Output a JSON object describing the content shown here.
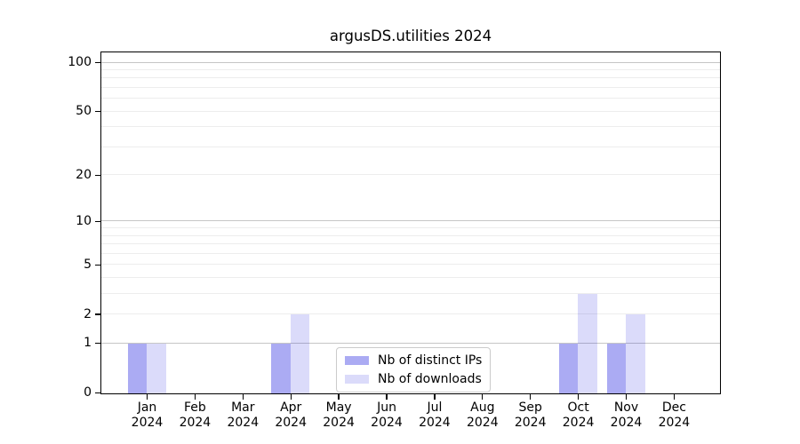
{
  "chart_data": {
    "type": "bar",
    "title": "argusDS.utilities 2024",
    "categories": [
      "Jan",
      "Feb",
      "Mar",
      "Apr",
      "May",
      "Jun",
      "Jul",
      "Aug",
      "Sep",
      "Oct",
      "Nov",
      "Dec"
    ],
    "category_year": "2024",
    "series": [
      {
        "name": "Nb of distinct IPs",
        "color": "#0000dc",
        "alpha": 0.33,
        "values": [
          1,
          0,
          0,
          1,
          0,
          0,
          0,
          0,
          0,
          1,
          1,
          0
        ]
      },
      {
        "name": "Nb of downloads",
        "color": "#0000dc",
        "alpha": 0.14,
        "values": [
          1,
          0,
          0,
          2,
          0,
          0,
          0,
          0,
          0,
          3,
          2,
          0
        ]
      }
    ],
    "yscale": "log1p",
    "ylim": [
      0,
      115
    ],
    "y_ticks": [
      0,
      1,
      2,
      5,
      10,
      20,
      50,
      100
    ],
    "y_decade_ticks": [
      1,
      10,
      100
    ],
    "y_minor_ticks": [
      3,
      4,
      6,
      7,
      8,
      9,
      30,
      40,
      60,
      70,
      80,
      90
    ],
    "grid": true,
    "legend_position": "lower center",
    "colors": {
      "grid_major": "#c6c6c6",
      "grid_minor": "#ededed",
      "spine": "#000000",
      "background": "#ffffff",
      "text": "#000000",
      "legend_border": "#cbcbcb"
    }
  }
}
